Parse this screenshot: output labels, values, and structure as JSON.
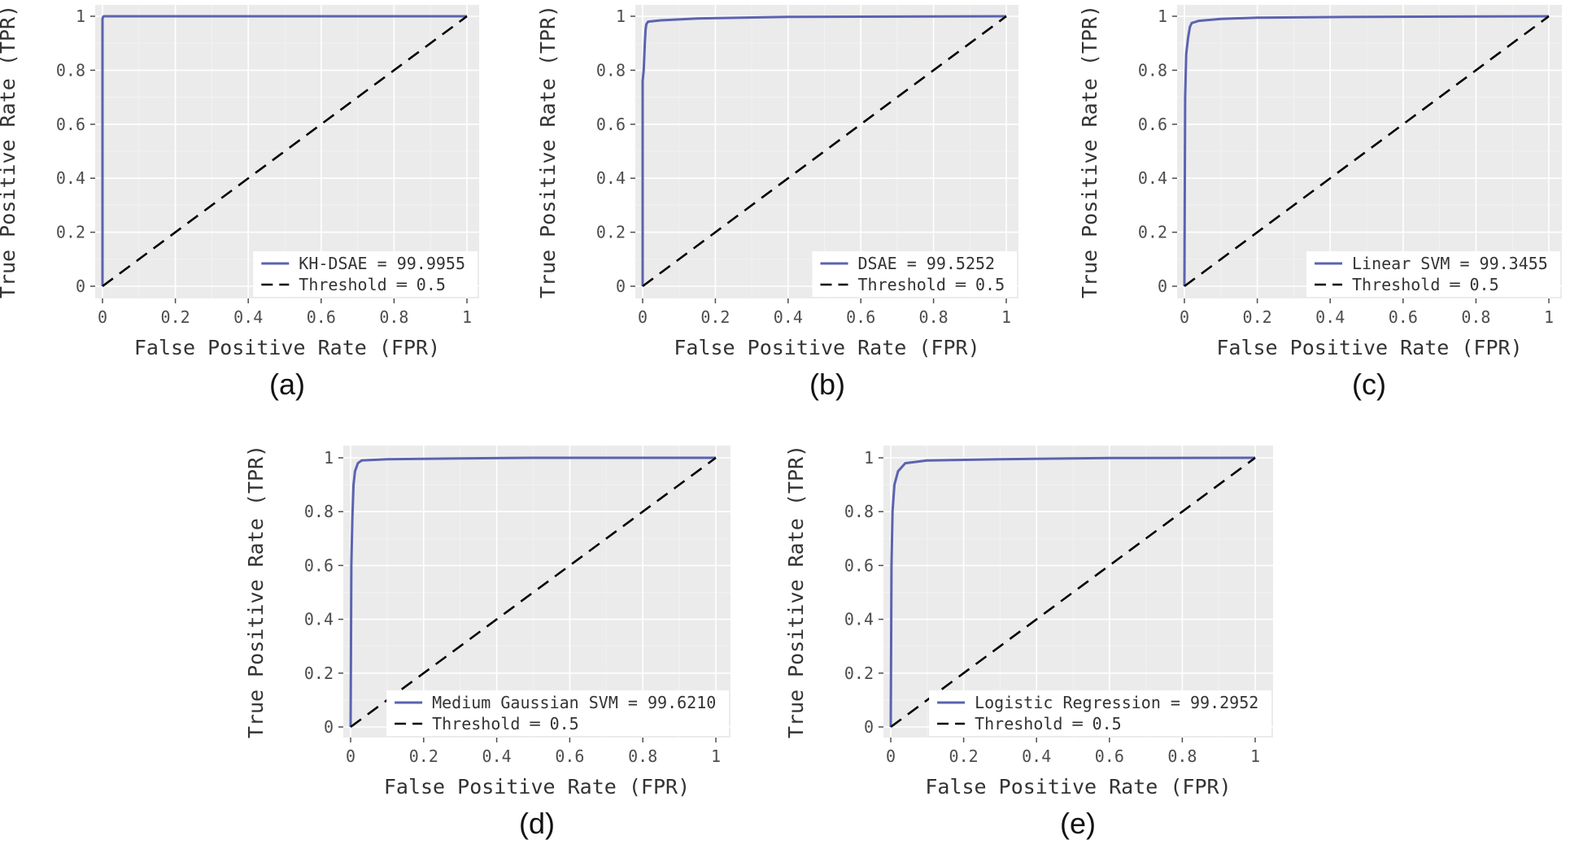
{
  "colors": {
    "panel": "#ebebeb",
    "grid_major": "#ffffff",
    "grid_minor": "#f2f2f2",
    "roc_line": "#5b63b0",
    "threshold_line": "#000000",
    "tick_color": "#4d4d4d"
  },
  "chart_data": [
    {
      "type": "line",
      "caption": "(a)",
      "xlabel": "False Positive Rate (FPR)",
      "ylabel": "True Positive Rate (TPR)",
      "xlim": [
        0,
        1
      ],
      "ylim": [
        0,
        1
      ],
      "xticks": [
        "0",
        "0.2",
        "0.4",
        "0.6",
        "0.8",
        "1"
      ],
      "yticks": [
        "0",
        "0.2",
        "0.4",
        "0.6",
        "0.8",
        "1"
      ],
      "grid": true,
      "legend_position": "bottom-right",
      "series": [
        {
          "name": "KH-DSAE = 99.9955",
          "style": "solid",
          "x": [
            0,
            0,
            0.002,
            0.005,
            1
          ],
          "y": [
            0,
            0.99,
            0.999,
            1,
            1
          ]
        },
        {
          "name": "Threshold ═ 0.5",
          "style": "dashed",
          "x": [
            0,
            1
          ],
          "y": [
            0,
            1
          ]
        }
      ]
    },
    {
      "type": "line",
      "caption": "(b)",
      "xlabel": "False Positive Rate (FPR)",
      "ylabel": "True Positive Rate (TPR)",
      "xlim": [
        0,
        1
      ],
      "ylim": [
        0,
        1
      ],
      "xticks": [
        "0",
        "0.2",
        "0.4",
        "0.6",
        "0.8",
        "1"
      ],
      "yticks": [
        "0",
        "0.2",
        "0.4",
        "0.6",
        "0.8",
        "1"
      ],
      "grid": true,
      "legend_position": "bottom-right",
      "series": [
        {
          "name": "DSAE = 99.5252",
          "style": "solid",
          "x": [
            0,
            0,
            0.003,
            0.006,
            0.008,
            0.01,
            0.015,
            0.05,
            0.15,
            0.4,
            1
          ],
          "y": [
            0,
            0.76,
            0.8,
            0.9,
            0.95,
            0.97,
            0.98,
            0.985,
            0.992,
            0.998,
            1
          ]
        },
        {
          "name": "Threshold ═ 0.5",
          "style": "dashed",
          "x": [
            0,
            1
          ],
          "y": [
            0,
            1
          ]
        }
      ]
    },
    {
      "type": "line",
      "caption": "(c)",
      "xlabel": "False Positive Rate (FPR)",
      "ylabel": "True Positive Rate (TPR)",
      "xlim": [
        0,
        1
      ],
      "ylim": [
        0,
        1
      ],
      "xticks": [
        "0",
        "0.2",
        "0.4",
        "0.6",
        "0.8",
        "1"
      ],
      "yticks": [
        "0",
        "0.2",
        "0.4",
        "0.6",
        "0.8",
        "1"
      ],
      "grid": true,
      "legend_position": "bottom-right",
      "series": [
        {
          "name": "Linear SVM = 99.3455",
          "style": "solid",
          "x": [
            0,
            0.002,
            0.005,
            0.01,
            0.015,
            0.02,
            0.04,
            0.1,
            0.2,
            0.5,
            1
          ],
          "y": [
            0,
            0.7,
            0.86,
            0.92,
            0.96,
            0.975,
            0.983,
            0.99,
            0.995,
            0.998,
            1
          ]
        },
        {
          "name": "Threshold ═ 0.5",
          "style": "dashed",
          "x": [
            0,
            1
          ],
          "y": [
            0,
            1
          ]
        }
      ]
    },
    {
      "type": "line",
      "caption": "(d)",
      "xlabel": "False Positive Rate (FPR)",
      "ylabel": "True Positive Rate (TPR)",
      "xlim": [
        0,
        1
      ],
      "ylim": [
        0,
        1
      ],
      "xticks": [
        "0",
        "0.2",
        "0.4",
        "0.6",
        "0.8",
        "1"
      ],
      "yticks": [
        "0",
        "0.2",
        "0.4",
        "0.6",
        "0.8",
        "1"
      ],
      "grid": true,
      "legend_position": "bottom-right",
      "series": [
        {
          "name": "Medium Gaussian SVM = 99.6210",
          "style": "solid",
          "x": [
            0,
            0.002,
            0.005,
            0.008,
            0.012,
            0.02,
            0.03,
            0.1,
            0.3,
            0.5,
            1
          ],
          "y": [
            0,
            0.6,
            0.78,
            0.9,
            0.95,
            0.98,
            0.99,
            0.995,
            0.998,
            1,
            1
          ]
        },
        {
          "name": "Threshold ═ 0.5",
          "style": "dashed",
          "x": [
            0,
            1
          ],
          "y": [
            0,
            1
          ]
        }
      ]
    },
    {
      "type": "line",
      "caption": "(e)",
      "xlabel": "False Positive Rate (FPR)",
      "ylabel": "True Positive Rate (TPR)",
      "xlim": [
        0,
        1
      ],
      "ylim": [
        0,
        1
      ],
      "xticks": [
        "0",
        "0.2",
        "0.4",
        "0.6",
        "0.8",
        "1"
      ],
      "yticks": [
        "0",
        "0.2",
        "0.4",
        "0.6",
        "0.8",
        "1"
      ],
      "grid": true,
      "legend_position": "bottom-right",
      "series": [
        {
          "name": "Logistic Regression = 99.2952",
          "style": "solid",
          "x": [
            0,
            0.002,
            0.005,
            0.01,
            0.02,
            0.04,
            0.1,
            0.3,
            0.6,
            1
          ],
          "y": [
            0,
            0.6,
            0.8,
            0.9,
            0.95,
            0.98,
            0.99,
            0.995,
            0.999,
            1
          ]
        },
        {
          "name": "Threshold ═ 0.5",
          "style": "dashed",
          "x": [
            0,
            1
          ],
          "y": [
            0,
            1
          ]
        }
      ]
    }
  ]
}
